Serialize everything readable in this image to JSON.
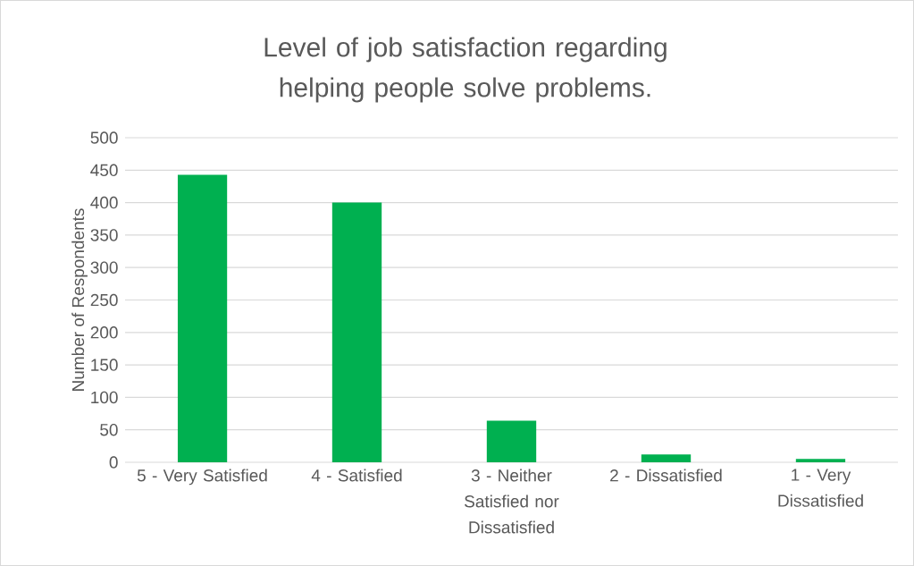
{
  "chart_data": {
    "type": "bar",
    "title": "Level of job satisfaction regarding helping people solve problems.",
    "ylabel": "Number of Respondents",
    "categories": [
      "5 - Very Satisfied",
      "4 - Satisfied",
      "3 - Neither Satisfied nor Dissatisfied",
      "2 - Dissatisfied",
      "1 - Very Dissatisfied"
    ],
    "values": [
      443,
      400,
      64,
      12,
      5
    ],
    "color": "#00b050",
    "ylim": [
      0,
      500
    ],
    "yticks": [
      0,
      50,
      100,
      150,
      200,
      250,
      300,
      350,
      400,
      450,
      500
    ],
    "grid": "y"
  }
}
